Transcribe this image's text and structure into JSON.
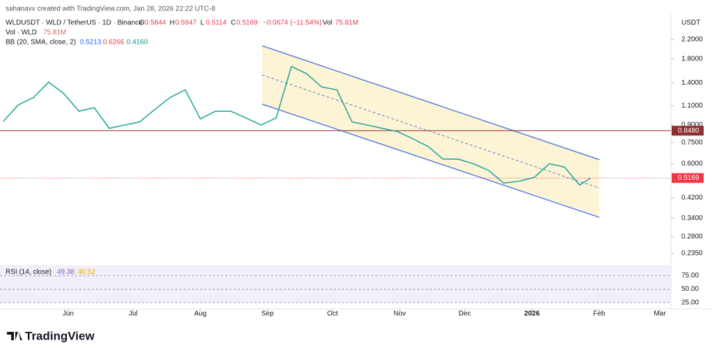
{
  "header": {
    "credit": "sahanavv created with TradingView.com, Jan 28, 2026 22:22 UTC-8",
    "symbol": "WLDUSDT · WLD / TetherUS · 1D · Binance",
    "ohlc": [
      {
        "key": "O",
        "value": "0.5844"
      },
      {
        "key": "H",
        "value": "0.5947"
      },
      {
        "key": "L",
        "value": "0.5114"
      },
      {
        "key": "C",
        "value": "0.5169"
      }
    ],
    "change": "−0.0674 (−11.54%)",
    "vol_key": "Vol",
    "vol_value": "75.81M",
    "vol_indicator": "Vol · WLD",
    "vol_indicator_value": "75.81M",
    "bb": "BB (20, SMA, close, 2)",
    "bb_values": [
      "0.5213",
      "0.6266",
      "0.4160"
    ],
    "rsi": "RSI (14, close)",
    "rsi_values": [
      "49.38",
      "40.52"
    ],
    "currency": "USDT",
    "brand": "TradingView"
  },
  "chart_data": {
    "type": "line",
    "log_scale": true,
    "x": [
      "2025-05-02",
      "2025-05-09",
      "2025-05-16",
      "2025-05-23",
      "2025-05-30",
      "2025-06-06",
      "2025-06-13",
      "2025-06-20",
      "2025-06-27",
      "2025-07-04",
      "2025-07-11",
      "2025-07-18",
      "2025-07-25",
      "2025-08-01",
      "2025-08-08",
      "2025-08-15",
      "2025-08-22",
      "2025-08-29",
      "2025-09-05",
      "2025-09-12",
      "2025-09-19",
      "2025-09-26",
      "2025-10-03",
      "2025-10-10",
      "2025-10-17",
      "2025-10-24",
      "2025-10-31",
      "2025-11-07",
      "2025-11-14",
      "2025-11-21",
      "2025-11-28",
      "2025-12-05",
      "2025-12-12",
      "2025-12-19",
      "2025-12-26",
      "2026-01-02",
      "2026-01-09",
      "2026-01-16",
      "2026-01-23",
      "2026-01-28"
    ],
    "series": [
      {
        "name": "WLDUSDT",
        "color": "#26a69a",
        "values": [
          0.934,
          1.11,
          1.2,
          1.41,
          1.25,
          1.04,
          1.08,
          0.87,
          0.9,
          0.93,
          1.06,
          1.2,
          1.3,
          0.96,
          1.04,
          1.04,
          0.97,
          0.9,
          0.97,
          1.66,
          1.54,
          1.34,
          1.3,
          0.93,
          0.9,
          0.87,
          0.84,
          0.78,
          0.72,
          0.63,
          0.63,
          0.6,
          0.56,
          0.49,
          0.5,
          0.52,
          0.6,
          0.58,
          0.48,
          0.5169
        ]
      }
    ],
    "ylim": [
      0.235,
      2.2
    ],
    "yticks": [
      {
        "value": 2.2,
        "label": "2.2000"
      },
      {
        "value": 1.8,
        "label": "1.8000"
      },
      {
        "value": 1.4,
        "label": "1.4000"
      },
      {
        "value": 1.1,
        "label": "1.1000"
      },
      {
        "value": 0.9,
        "label": "0.9000"
      },
      {
        "value": 0.75,
        "label": "0.7500"
      },
      {
        "value": 0.6,
        "label": "0.6000"
      },
      {
        "value": 0.42,
        "label": "0.4200"
      },
      {
        "value": 0.34,
        "label": "0.3400"
      },
      {
        "value": 0.28,
        "label": "0.2800"
      },
      {
        "value": 0.235,
        "label": "0.2350"
      }
    ],
    "xticks": [
      {
        "value": "2025-06-01",
        "label": "Jun"
      },
      {
        "value": "2025-07-01",
        "label": "Jul"
      },
      {
        "value": "2025-08-01",
        "label": "Aug"
      },
      {
        "value": "2025-09-01",
        "label": "Sep"
      },
      {
        "value": "2025-10-01",
        "label": "Oct"
      },
      {
        "value": "2025-11-01",
        "label": "Nov"
      },
      {
        "value": "2025-12-01",
        "label": "Dec"
      },
      {
        "value": "2026-01-01",
        "label": "2026"
      },
      {
        "value": "2026-02-01",
        "label": "Feb"
      },
      {
        "value": "2026-03-01",
        "label": "Mar"
      }
    ],
    "price_lines": [
      {
        "value": 0.848,
        "label": "0.8480",
        "color": "#8b2f2f"
      },
      {
        "value": 0.5169,
        "label": "0.5169",
        "color": "#f23645"
      }
    ],
    "rsi_ylim": [
      25,
      75
    ],
    "rsi_ticks": [
      {
        "value": 75,
        "label": "75.00"
      },
      {
        "value": 50,
        "label": "50.00"
      },
      {
        "value": 25,
        "label": "25.00"
      }
    ]
  }
}
